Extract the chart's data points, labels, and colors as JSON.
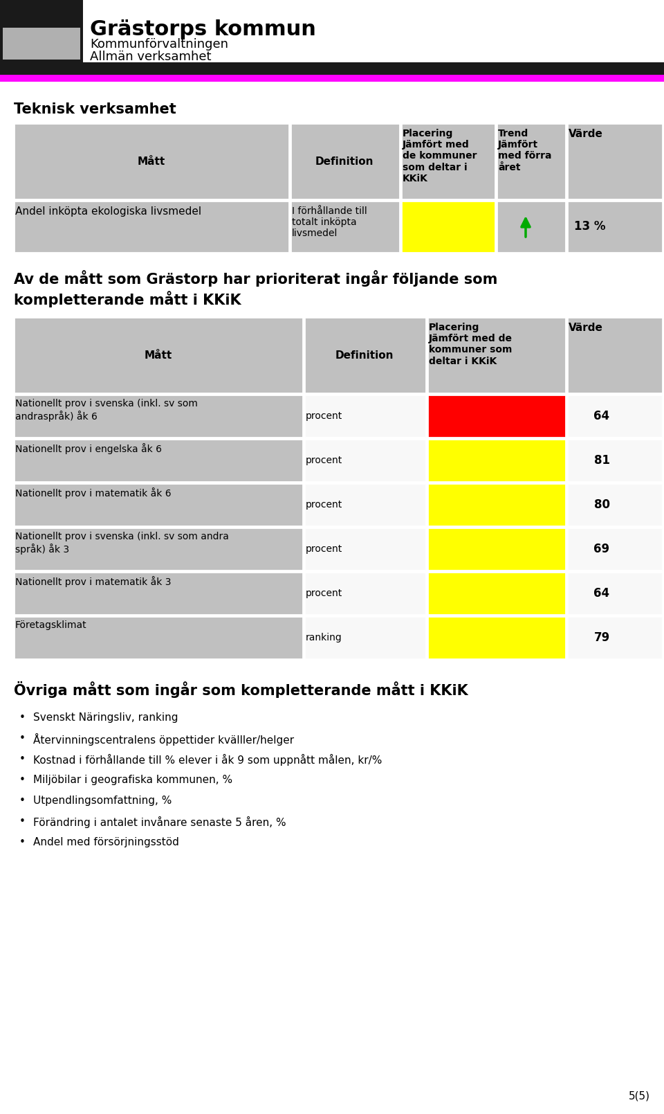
{
  "title_municipality": "Grästorps kommun",
  "subtitle1": "Kommunförvaltningen",
  "subtitle2": "Allmän verksamhet",
  "section1_title": "Teknisk verksamhet",
  "table1_rows": [
    {
      "matt": "Andel inköpta ekologiska livsmedel",
      "definition": "I förhållande till\ntotalt inköpta\nlivsmedel",
      "placering_color": "#FFFF00",
      "trend": "arrow_up",
      "varde": "13 %"
    }
  ],
  "section2_title": "Av de mått som Grästorp har prioriterat ingår följande som\nkompletterande mått i KKiK",
  "table2_rows": [
    {
      "matt": "Nationellt prov i svenska (inkl. sv som\nandraspråk) åk 6",
      "definition": "procent",
      "placering_color": "#FF0000",
      "varde": "64"
    },
    {
      "matt": "Nationellt prov i engelska åk 6",
      "definition": "procent",
      "placering_color": "#FFFF00",
      "varde": "81"
    },
    {
      "matt": "Nationellt prov i matematik åk 6",
      "definition": "procent",
      "placering_color": "#FFFF00",
      "varde": "80"
    },
    {
      "matt": "Nationellt prov i svenska (inkl. sv som andra\nspråk) åk 3",
      "definition": "procent",
      "placering_color": "#FFFF00",
      "varde": "69"
    },
    {
      "matt": "Nationellt prov i matematik åk 3",
      "definition": "procent",
      "placering_color": "#FFFF00",
      "varde": "64"
    },
    {
      "matt": "Företagsklimat",
      "definition": "ranking",
      "placering_color": "#FFFF00",
      "varde": "79"
    }
  ],
  "section3_title": "Övriga mått som ingår som kompletterande mått i KKiK",
  "bullet_points": [
    "Svenskt Näringsliv, ranking",
    "Återvinningscentralens öppettider kvälller/helger",
    "Kostnad i förhållande till % elever i åk 9 som uppnått målen, kr/%",
    "Miljöbilar i geografiska kommunen, %",
    "Utpendlingsomfattning, %",
    "Förändring i antalet invånare senaste 5 åren, %",
    "Andel med försörjningsstöd"
  ],
  "page_number": "5(5)",
  "header_bar_black": "#1a1a1a",
  "header_bar_magenta": "#FF00FF",
  "header_gray": "#C0C0C0",
  "bg_color": "#FFFFFF"
}
